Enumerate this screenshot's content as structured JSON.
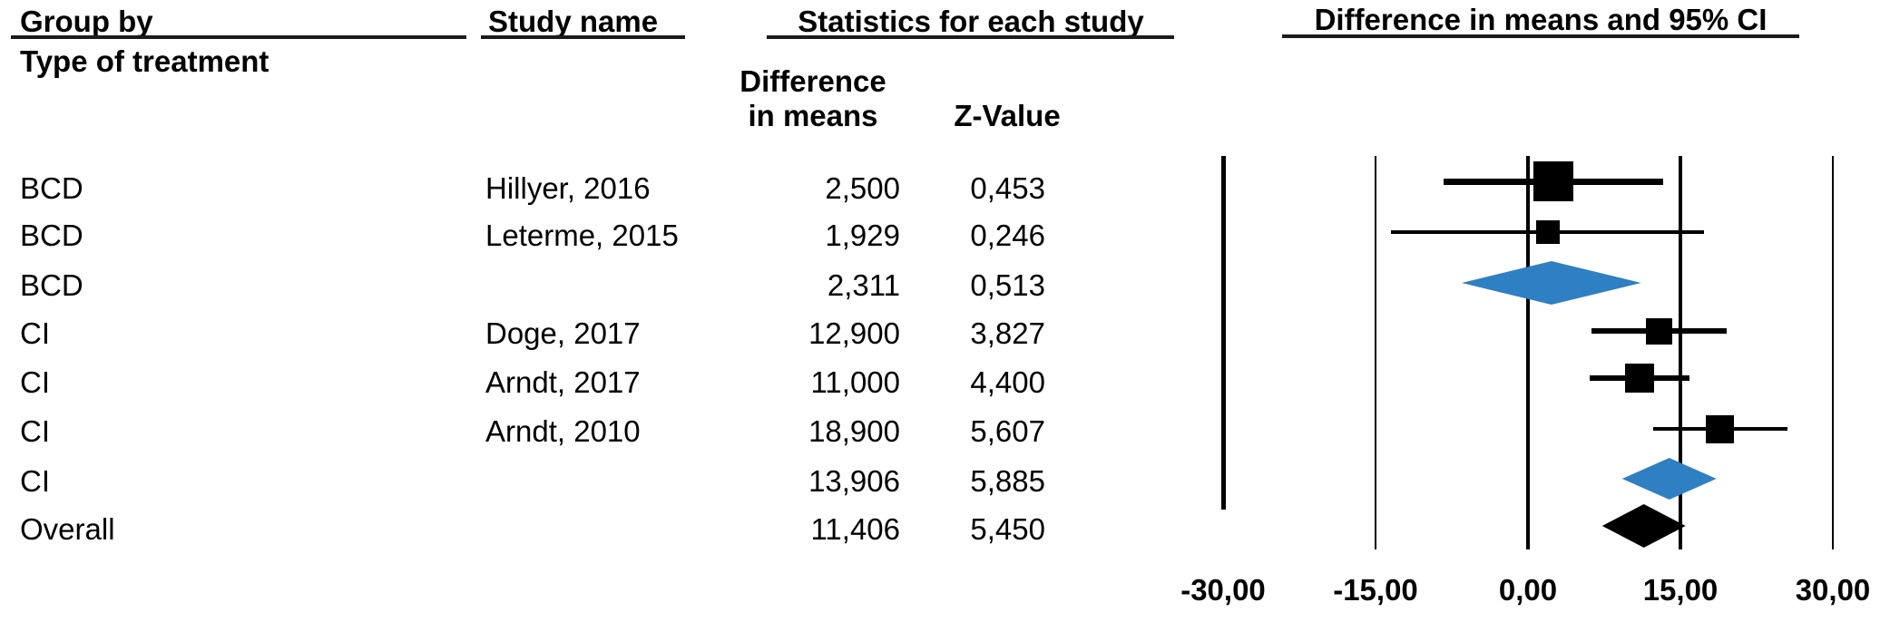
{
  "header": {
    "group_by_line1": "Group by",
    "group_by_line2": "Type of treatment",
    "study_name_col": "Study name",
    "statistics_col": "Statistics for each study",
    "stat_sub_col1_line1": "Difference",
    "stat_sub_col1_line2": "in means",
    "stat_sub_col2": "Z-Value",
    "plot_title": "Difference in means and 95% CI"
  },
  "table": {
    "rows": [
      {
        "group": "BCD",
        "study": "Hillyer, 2016",
        "diff": "2,500",
        "z": "0,453"
      },
      {
        "group": "BCD",
        "study": "Leterme, 2015",
        "diff": "1,929",
        "z": "0,246"
      },
      {
        "group": "BCD",
        "study": "",
        "diff": "2,311",
        "z": "0,513"
      },
      {
        "group": "CI",
        "study": "Doge, 2017",
        "diff": "12,900",
        "z": "3,827"
      },
      {
        "group": "CI",
        "study": "Arndt, 2017",
        "diff": "11,000",
        "z": "4,400"
      },
      {
        "group": "CI",
        "study": "Arndt, 2010",
        "diff": "18,900",
        "z": "5,607"
      },
      {
        "group": "CI",
        "study": "",
        "diff": "13,906",
        "z": "5,885"
      },
      {
        "group": "Overall",
        "study": "",
        "diff": "11,406",
        "z": "5,450"
      }
    ]
  },
  "chart_data": {
    "type": "forest",
    "title": "Difference in means and 95% CI",
    "x_axis": {
      "range": [
        -30,
        30
      ],
      "tick_values": [
        -30,
        -15,
        0,
        15,
        30
      ],
      "tick_labels": [
        "-30,00",
        "-15,00",
        "0,00",
        "15,00",
        "30,00"
      ],
      "zero_line": 0,
      "grid": true
    },
    "studies": [
      {
        "label": "Hillyer, 2016",
        "group": "BCD",
        "marker": "square",
        "mean": 2.5,
        "ci_low": -8.31,
        "ci_high": 13.31,
        "z": 0.453,
        "size": 44,
        "line_weight": 7,
        "color": "#000000"
      },
      {
        "label": "Leterme, 2015",
        "group": "BCD",
        "marker": "square",
        "mean": 1.929,
        "ci_low": -13.44,
        "ci_high": 17.3,
        "z": 0.246,
        "size": 26,
        "line_weight": 4,
        "color": "#000000"
      },
      {
        "label": "BCD subtotal",
        "group": "BCD",
        "marker": "diamond",
        "mean": 2.311,
        "ci_low": -6.52,
        "ci_high": 11.14,
        "z": 0.513,
        "size": 48,
        "color": "#2F7FC3"
      },
      {
        "label": "Doge, 2017",
        "group": "CI",
        "marker": "square",
        "mean": 12.9,
        "ci_low": 6.29,
        "ci_high": 19.51,
        "z": 3.827,
        "size": 29,
        "line_weight": 6,
        "color": "#000000"
      },
      {
        "label": "Arndt, 2017",
        "group": "CI",
        "marker": "square",
        "mean": 11.0,
        "ci_low": 6.1,
        "ci_high": 15.9,
        "z": 4.4,
        "size": 32,
        "line_weight": 6,
        "color": "#000000"
      },
      {
        "label": "Arndt, 2010",
        "group": "CI",
        "marker": "square",
        "mean": 18.9,
        "ci_low": 12.29,
        "ci_high": 25.51,
        "z": 5.607,
        "size": 31,
        "line_weight": 4,
        "color": "#000000"
      },
      {
        "label": "CI subtotal",
        "group": "CI",
        "marker": "diamond",
        "mean": 13.906,
        "ci_low": 9.27,
        "ci_high": 18.54,
        "z": 5.885,
        "size": 46,
        "color": "#2F7FC3"
      },
      {
        "label": "Overall",
        "group": "Overall",
        "marker": "diamond",
        "mean": 11.406,
        "ci_low": 7.3,
        "ci_high": 15.51,
        "z": 5.45,
        "size": 48,
        "color": "#000000"
      }
    ]
  },
  "colors": {
    "subtotal_diamond": "#2F7FC3",
    "overall_diamond": "#000000",
    "text": "#000000"
  }
}
